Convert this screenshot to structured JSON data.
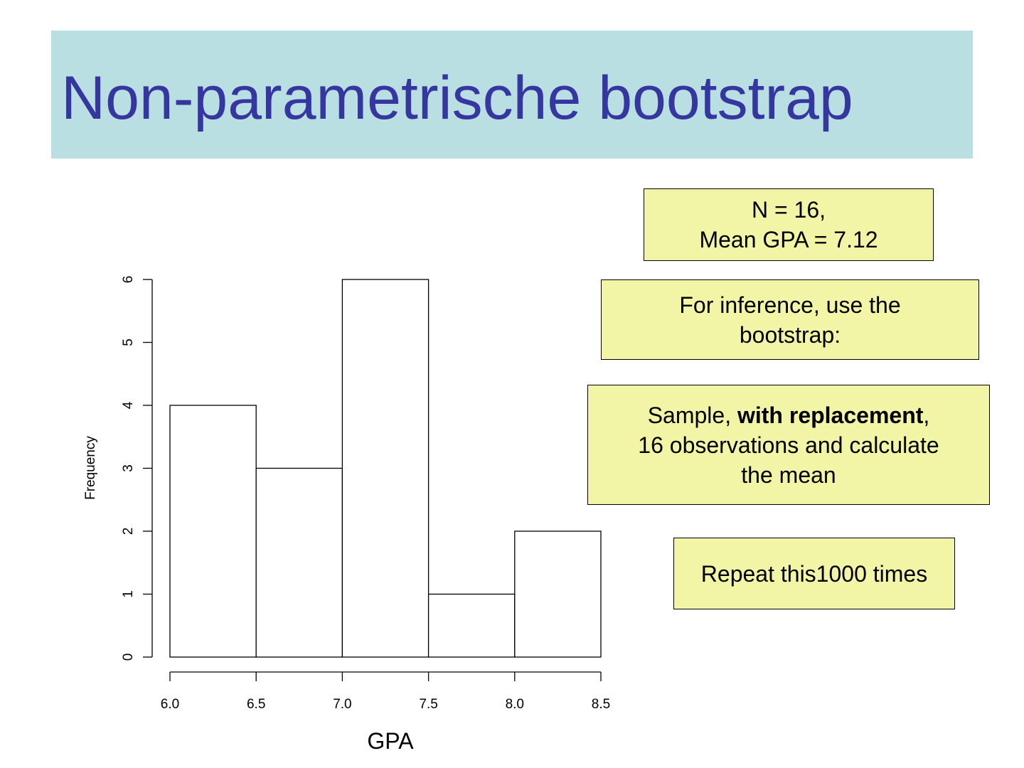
{
  "slide": {
    "title": "Non-parametrische bootstrap"
  },
  "colors": {
    "title_bg": "#b9dfe2",
    "title_text": "#3636a0",
    "box_bg": "#f2f5a6"
  },
  "boxes": {
    "summary": {
      "line1": "N = 16,",
      "line2": "Mean GPA = 7.12"
    },
    "inference": {
      "line1": "For inference, use the",
      "line2": "bootstrap:"
    },
    "sample": {
      "pre": "Sample, ",
      "bold": "with replacement",
      "post": ",",
      "line2": "16 observations and calculate",
      "line3": "the mean"
    },
    "repeat": {
      "text": "Repeat this1000 times"
    }
  },
  "chart_data": {
    "type": "bar",
    "subtype": "histogram",
    "bins": [
      {
        "x0": 6.0,
        "x1": 6.5,
        "value": 4
      },
      {
        "x0": 6.5,
        "x1": 7.0,
        "value": 3
      },
      {
        "x0": 7.0,
        "x1": 7.5,
        "value": 6
      },
      {
        "x0": 7.5,
        "x1": 8.0,
        "value": 1
      },
      {
        "x0": 8.0,
        "x1": 8.5,
        "value": 2
      }
    ],
    "xlabel": "GPA",
    "ylabel": "Frequency",
    "xlim": [
      6.0,
      8.5
    ],
    "ylim": [
      0,
      6
    ],
    "xticks": [
      "6.0",
      "6.5",
      "7.0",
      "7.5",
      "8.0",
      "8.5"
    ],
    "yticks": [
      "0",
      "1",
      "2",
      "3",
      "4",
      "5",
      "6"
    ],
    "grid": false
  }
}
